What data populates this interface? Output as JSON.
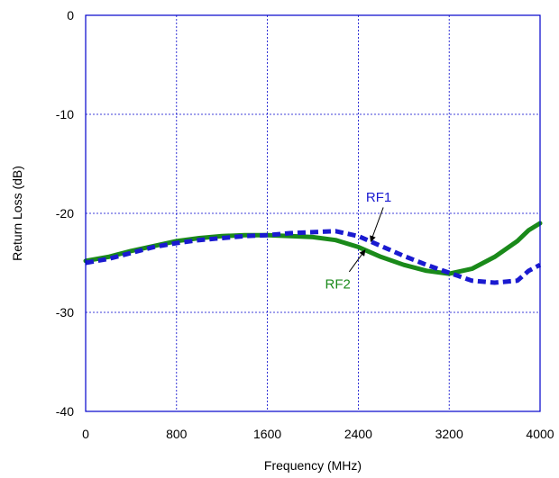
{
  "chart_data": {
    "type": "line",
    "title": "",
    "xlabel": "Frequency (MHz)",
    "ylabel": "Return Loss (dB)",
    "xlim": [
      0,
      4000
    ],
    "ylim": [
      -40,
      0
    ],
    "xticks": [
      0,
      800,
      1600,
      2400,
      3200,
      4000
    ],
    "xtick_labels": [
      "0",
      "800",
      "1600",
      "2400",
      "3200",
      "4000"
    ],
    "yticks": [
      0,
      -10,
      -20,
      -30,
      -40
    ],
    "ytick_labels": [
      "0",
      "-10",
      "-20",
      "-30",
      "-40"
    ],
    "grid": true,
    "series": [
      {
        "name": "RF1",
        "color": "#1a1ad0",
        "style": "dashed",
        "x": [
          0,
          200,
          400,
          600,
          800,
          1000,
          1200,
          1400,
          1600,
          1800,
          2000,
          2200,
          2400,
          2600,
          2800,
          3000,
          3200,
          3400,
          3600,
          3800,
          3900,
          4000
        ],
        "y": [
          -25,
          -24.6,
          -24,
          -23.4,
          -23.0,
          -22.7,
          -22.5,
          -22.3,
          -22.2,
          -22.0,
          -21.9,
          -21.8,
          -22.3,
          -23.3,
          -24.3,
          -25.2,
          -26.0,
          -26.8,
          -27.0,
          -26.8,
          -25.8,
          -25.2
        ]
      },
      {
        "name": "RF2",
        "color": "#1a8a1a",
        "style": "solid",
        "x": [
          0,
          200,
          400,
          600,
          800,
          1000,
          1200,
          1400,
          1600,
          1800,
          2000,
          2200,
          2400,
          2600,
          2800,
          3000,
          3200,
          3400,
          3600,
          3800,
          3900,
          4000
        ],
        "y": [
          -24.8,
          -24.4,
          -23.8,
          -23.3,
          -22.8,
          -22.5,
          -22.3,
          -22.2,
          -22.2,
          -22.3,
          -22.4,
          -22.7,
          -23.4,
          -24.4,
          -25.2,
          -25.8,
          -26.1,
          -25.6,
          -24.4,
          -22.8,
          -21.7,
          -21.0
        ]
      }
    ],
    "annotations": [
      {
        "text": "RF1",
        "color": "#1a1ad0",
        "points_to": "RF1"
      },
      {
        "text": "RF2",
        "color": "#1a8a1a",
        "points_to": "RF2"
      }
    ]
  }
}
